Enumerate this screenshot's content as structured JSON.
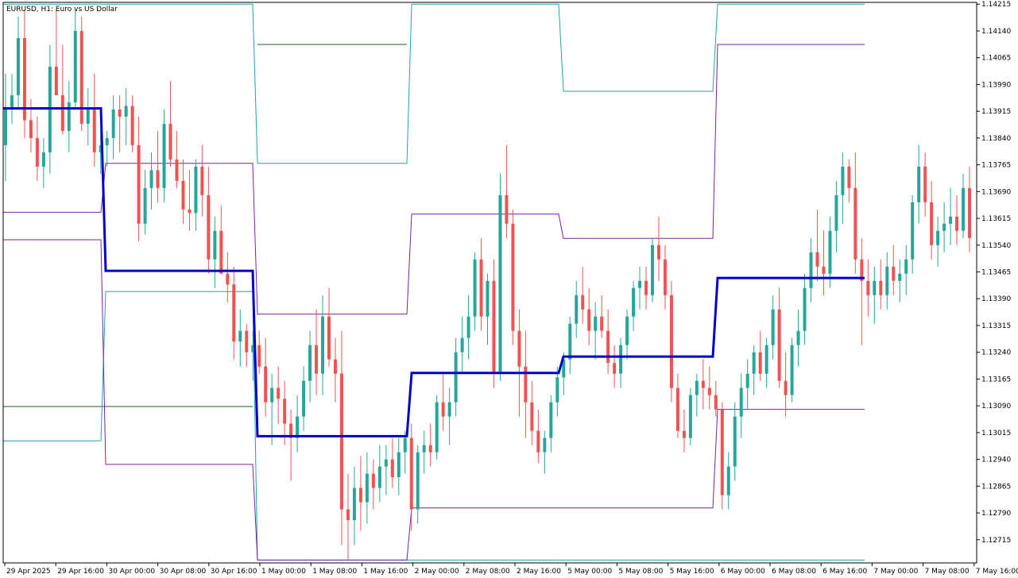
{
  "window": {
    "title": "EURUSD, H1:  Euro vs US Dollar"
  },
  "colors": {
    "bull": "#26a69a",
    "bear": "#ef5350",
    "pivot": "#0000cc",
    "r1s1": "#7b1fa2",
    "r2s2": "#26a0b0",
    "r3s3": "#1b5e20",
    "axis": "#000000",
    "background": "#ffffff"
  },
  "chart_data": {
    "type": "line",
    "symbol": "EURUSD",
    "timeframe": "H1",
    "ylim": [
      1.1265,
      1.1422
    ],
    "y_ticks": [
      "1.14215",
      "1.14140",
      "1.14065",
      "1.13990",
      "1.13915",
      "1.13840",
      "1.13765",
      "1.13690",
      "1.13615",
      "1.13540",
      "1.13465",
      "1.13390",
      "1.13315",
      "1.13240",
      "1.13165",
      "1.13090",
      "1.13015",
      "1.12940",
      "1.12865",
      "1.12790",
      "1.12715"
    ],
    "x_ticks": [
      "29 Apr 2025",
      "29 Apr 16:00",
      "30 Apr 00:00",
      "30 Apr 08:00",
      "30 Apr 16:00",
      "1 May 00:00",
      "1 May 08:00",
      "1 May 16:00",
      "2 May 00:00",
      "2 May 08:00",
      "2 May 16:00",
      "5 May 00:00",
      "5 May 08:00",
      "5 May 16:00",
      "6 May 00:00",
      "6 May 08:00",
      "6 May 16:00",
      "7 May 00:00",
      "7 May 08:00",
      "7 May 16:00"
    ],
    "candles": [
      [
        1.1382,
        1.1402,
        1.1372,
        1.1392
      ],
      [
        1.1392,
        1.1402,
        1.1388,
        1.1396
      ],
      [
        1.1396,
        1.1418,
        1.1392,
        1.1412
      ],
      [
        1.1412,
        1.142,
        1.1384,
        1.1389
      ],
      [
        1.1389,
        1.1395,
        1.138,
        1.1384
      ],
      [
        1.1384,
        1.139,
        1.1372,
        1.1376
      ],
      [
        1.1376,
        1.1384,
        1.137,
        1.138
      ],
      [
        1.138,
        1.141,
        1.1374,
        1.1404
      ],
      [
        1.1404,
        1.142,
        1.1396,
        1.1396
      ],
      [
        1.1396,
        1.141,
        1.1385,
        1.1386
      ],
      [
        1.1386,
        1.14,
        1.138,
        1.1394
      ],
      [
        1.1394,
        1.142,
        1.1392,
        1.1414
      ],
      [
        1.1414,
        1.1418,
        1.1386,
        1.1388
      ],
      [
        1.1388,
        1.1398,
        1.1382,
        1.1392
      ],
      [
        1.1392,
        1.1402,
        1.1376,
        1.138
      ],
      [
        1.138,
        1.1386,
        1.1374,
        1.1382
      ],
      [
        1.1382,
        1.1386,
        1.1376,
        1.1384
      ],
      [
        1.1384,
        1.1396,
        1.1378,
        1.1392
      ],
      [
        1.1392,
        1.1396,
        1.138,
        1.139
      ],
      [
        1.139,
        1.1398,
        1.1382,
        1.1393
      ],
      [
        1.1393,
        1.1396,
        1.138,
        1.1382
      ],
      [
        1.1382,
        1.139,
        1.1355,
        1.136
      ],
      [
        1.136,
        1.1375,
        1.1357,
        1.137
      ],
      [
        1.137,
        1.138,
        1.1364,
        1.1375
      ],
      [
        1.1375,
        1.1386,
        1.1366,
        1.137
      ],
      [
        1.137,
        1.1392,
        1.1366,
        1.1388
      ],
      [
        1.1388,
        1.14,
        1.1376,
        1.1378
      ],
      [
        1.1378,
        1.1386,
        1.137,
        1.1372
      ],
      [
        1.1372,
        1.1378,
        1.136,
        1.1364
      ],
      [
        1.1364,
        1.1375,
        1.1358,
        1.1363
      ],
      [
        1.1363,
        1.1378,
        1.1358,
        1.1376
      ],
      [
        1.1376,
        1.1382,
        1.1362,
        1.1368
      ],
      [
        1.1368,
        1.1376,
        1.1346,
        1.135
      ],
      [
        1.135,
        1.1362,
        1.1342,
        1.1358
      ],
      [
        1.1358,
        1.1365,
        1.1346,
        1.1346
      ],
      [
        1.1346,
        1.1352,
        1.1338,
        1.1343
      ],
      [
        1.1343,
        1.1348,
        1.1322,
        1.1327
      ],
      [
        1.1327,
        1.1336,
        1.132,
        1.133
      ],
      [
        1.133,
        1.1332,
        1.132,
        1.1324
      ],
      [
        1.1324,
        1.133,
        1.1316,
        1.1326
      ],
      [
        1.1326,
        1.133,
        1.1318,
        1.132
      ],
      [
        1.132,
        1.1328,
        1.1306,
        1.131
      ],
      [
        1.131,
        1.1318,
        1.1298,
        1.1314
      ],
      [
        1.1314,
        1.132,
        1.1304,
        1.1311
      ],
      [
        1.1311,
        1.1316,
        1.1298,
        1.1304
      ],
      [
        1.1304,
        1.1308,
        1.1288,
        1.13
      ],
      [
        1.13,
        1.1312,
        1.1296,
        1.1306
      ],
      [
        1.1306,
        1.132,
        1.1302,
        1.1316
      ],
      [
        1.1316,
        1.133,
        1.131,
        1.1326
      ],
      [
        1.1326,
        1.1336,
        1.1312,
        1.1318
      ],
      [
        1.1318,
        1.134,
        1.1312,
        1.1334
      ],
      [
        1.1334,
        1.1342,
        1.132,
        1.1322
      ],
      [
        1.1322,
        1.1328,
        1.131,
        1.1318
      ],
      [
        1.1318,
        1.133,
        1.127,
        1.128
      ],
      [
        1.128,
        1.129,
        1.1266,
        1.1277
      ],
      [
        1.1277,
        1.1292,
        1.127,
        1.1286
      ],
      [
        1.1286,
        1.1295,
        1.1274,
        1.1282
      ],
      [
        1.1282,
        1.1296,
        1.1276,
        1.129
      ],
      [
        1.129,
        1.1294,
        1.128,
        1.1286
      ],
      [
        1.1286,
        1.1298,
        1.1282,
        1.1292
      ],
      [
        1.1292,
        1.1298,
        1.1284,
        1.1294
      ],
      [
        1.1294,
        1.13,
        1.1286,
        1.1289
      ],
      [
        1.1289,
        1.13,
        1.1284,
        1.1296
      ],
      [
        1.1296,
        1.1302,
        1.129,
        1.13
      ],
      [
        1.13,
        1.1304,
        1.1274,
        1.128
      ],
      [
        1.128,
        1.1298,
        1.1276,
        1.1296
      ],
      [
        1.1296,
        1.1302,
        1.129,
        1.1298
      ],
      [
        1.1298,
        1.1304,
        1.1292,
        1.1296
      ],
      [
        1.1296,
        1.1312,
        1.1294,
        1.131
      ],
      [
        1.131,
        1.1318,
        1.1302,
        1.1306
      ],
      [
        1.1306,
        1.1314,
        1.1298,
        1.131
      ],
      [
        1.131,
        1.1328,
        1.1306,
        1.1324
      ],
      [
        1.1324,
        1.1334,
        1.1318,
        1.1328
      ],
      [
        1.1328,
        1.134,
        1.1322,
        1.1334
      ],
      [
        1.1334,
        1.1352,
        1.133,
        1.135
      ],
      [
        1.135,
        1.1356,
        1.133,
        1.1334
      ],
      [
        1.1334,
        1.1346,
        1.1326,
        1.1344
      ],
      [
        1.1344,
        1.135,
        1.1314,
        1.1318
      ],
      [
        1.1318,
        1.1374,
        1.1316,
        1.1368
      ],
      [
        1.1368,
        1.1382,
        1.1356,
        1.136
      ],
      [
        1.136,
        1.1364,
        1.1326,
        1.133
      ],
      [
        1.133,
        1.1336,
        1.1306,
        1.132
      ],
      [
        1.132,
        1.133,
        1.13,
        1.131
      ],
      [
        1.131,
        1.1316,
        1.1298,
        1.1302
      ],
      [
        1.1302,
        1.1308,
        1.1293,
        1.1296
      ],
      [
        1.1296,
        1.1302,
        1.129,
        1.13
      ],
      [
        1.13,
        1.1312,
        1.1296,
        1.131
      ],
      [
        1.131,
        1.132,
        1.1306,
        1.1317
      ],
      [
        1.1317,
        1.1324,
        1.1312,
        1.1322
      ],
      [
        1.1322,
        1.1334,
        1.1318,
        1.1332
      ],
      [
        1.1332,
        1.1344,
        1.1328,
        1.134
      ],
      [
        1.134,
        1.1348,
        1.1332,
        1.1336
      ],
      [
        1.1336,
        1.1342,
        1.1326,
        1.133
      ],
      [
        1.133,
        1.1338,
        1.1322,
        1.1334
      ],
      [
        1.1334,
        1.134,
        1.1328,
        1.133
      ],
      [
        1.133,
        1.1336,
        1.1318,
        1.1321
      ],
      [
        1.1321,
        1.1326,
        1.1314,
        1.1318
      ],
      [
        1.1318,
        1.1328,
        1.1314,
        1.1326
      ],
      [
        1.1326,
        1.1336,
        1.1322,
        1.1334
      ],
      [
        1.1334,
        1.1344,
        1.133,
        1.1342
      ],
      [
        1.1342,
        1.1348,
        1.1336,
        1.1344
      ],
      [
        1.1344,
        1.1348,
        1.1336,
        1.134
      ],
      [
        1.134,
        1.1356,
        1.1338,
        1.1354
      ],
      [
        1.1354,
        1.1362,
        1.1344,
        1.135
      ],
      [
        1.135,
        1.1354,
        1.1336,
        1.134
      ],
      [
        1.134,
        1.1344,
        1.131,
        1.1314
      ],
      [
        1.1314,
        1.1318,
        1.13,
        1.1302
      ],
      [
        1.1302,
        1.1308,
        1.1296,
        1.13
      ],
      [
        1.13,
        1.1314,
        1.1298,
        1.1312
      ],
      [
        1.1312,
        1.1318,
        1.1306,
        1.1316
      ],
      [
        1.1316,
        1.1322,
        1.1308,
        1.1314
      ],
      [
        1.1314,
        1.132,
        1.1308,
        1.1312
      ],
      [
        1.1312,
        1.1316,
        1.1306,
        1.1308
      ],
      [
        1.1308,
        1.131,
        1.128,
        1.1284
      ],
      [
        1.1284,
        1.1296,
        1.128,
        1.1292
      ],
      [
        1.1292,
        1.131,
        1.1288,
        1.1306
      ],
      [
        1.1306,
        1.1318,
        1.13,
        1.1314
      ],
      [
        1.1314,
        1.1322,
        1.1308,
        1.1318
      ],
      [
        1.1318,
        1.1326,
        1.1312,
        1.1324
      ],
      [
        1.1324,
        1.133,
        1.1316,
        1.1318
      ],
      [
        1.1318,
        1.1328,
        1.1314,
        1.1326
      ],
      [
        1.1326,
        1.134,
        1.1322,
        1.1336
      ],
      [
        1.1336,
        1.1342,
        1.1314,
        1.1316
      ],
      [
        1.1316,
        1.1324,
        1.1306,
        1.1312
      ],
      [
        1.1312,
        1.1328,
        1.131,
        1.1326
      ],
      [
        1.1326,
        1.1336,
        1.132,
        1.133
      ],
      [
        1.133,
        1.1346,
        1.1326,
        1.1342
      ],
      [
        1.1342,
        1.1356,
        1.1338,
        1.1352
      ],
      [
        1.1352,
        1.1364,
        1.1344,
        1.1348
      ],
      [
        1.1348,
        1.1358,
        1.134,
        1.1346
      ],
      [
        1.1346,
        1.1362,
        1.1342,
        1.1358
      ],
      [
        1.1358,
        1.1372,
        1.1352,
        1.1368
      ],
      [
        1.1368,
        1.138,
        1.136,
        1.1376
      ],
      [
        1.1376,
        1.1378,
        1.1366,
        1.137
      ],
      [
        1.137,
        1.138,
        1.1346,
        1.135
      ],
      [
        1.135,
        1.1356,
        1.1326,
        1.1344
      ],
      [
        1.1344,
        1.135,
        1.1334,
        1.134
      ],
      [
        1.134,
        1.1348,
        1.1332,
        1.1344
      ],
      [
        1.1344,
        1.135,
        1.1336,
        1.134
      ],
      [
        1.134,
        1.1352,
        1.1336,
        1.1348
      ],
      [
        1.1348,
        1.1354,
        1.134,
        1.1344
      ],
      [
        1.1344,
        1.135,
        1.1338,
        1.1346
      ],
      [
        1.1346,
        1.1354,
        1.134,
        1.135
      ],
      [
        1.135,
        1.1368,
        1.1346,
        1.1366
      ],
      [
        1.1366,
        1.1382,
        1.136,
        1.1376
      ],
      [
        1.1376,
        1.138,
        1.1362,
        1.1366
      ],
      [
        1.1366,
        1.1372,
        1.135,
        1.1354
      ],
      [
        1.1354,
        1.1362,
        1.1348,
        1.1358
      ],
      [
        1.1358,
        1.1366,
        1.1352,
        1.136
      ],
      [
        1.136,
        1.137,
        1.1354,
        1.1362
      ],
      [
        1.1362,
        1.1368,
        1.1354,
        1.1358
      ],
      [
        1.1358,
        1.1374,
        1.1356,
        1.137
      ],
      [
        1.137,
        1.1376,
        1.1352,
        1.1356
      ]
    ],
    "pivot_levels": {
      "pivot": [
        1.13923,
        1.13468,
        1.13005,
        1.13182,
        1.13228,
        1.13448
      ],
      "r1": [
        1.13632,
        1.13769,
        1.13347,
        1.13627,
        1.13559,
        1.14102
      ],
      "s1": [
        1.13555,
        1.12926,
        1.12658,
        1.12804,
        1.12804,
        1.1308
      ],
      "r2": [
        1.14215,
        1.14215,
        1.13769,
        1.14215,
        1.13971,
        1.14215
      ],
      "s2": [
        1.12992,
        1.1341,
        1.12658,
        1.12658,
        1.12658,
        1.12658
      ],
      "r3": [
        null,
        null,
        1.14102,
        null,
        null,
        null
      ],
      "s3": [
        1.13088,
        1.13088,
        null,
        null,
        null,
        null
      ]
    }
  }
}
